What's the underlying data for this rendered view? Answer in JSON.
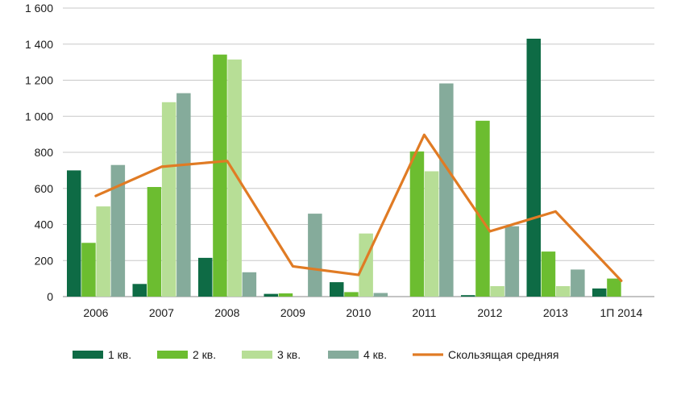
{
  "chart_data": {
    "type": "bar",
    "categories": [
      "2006",
      "2007",
      "2008",
      "2009",
      "2010",
      "2011",
      "2012",
      "2013",
      "1П 2014"
    ],
    "series": [
      {
        "name": "1 кв.",
        "color": "#0e6b45",
        "values": [
          700,
          70,
          215,
          15,
          80,
          0,
          8,
          1430,
          45
        ]
      },
      {
        "name": "2 кв.",
        "color": "#6cbd30",
        "values": [
          298,
          608,
          1342,
          18,
          25,
          805,
          975,
          250,
          100
        ]
      },
      {
        "name": "3 кв.",
        "color": "#b7de96",
        "values": [
          500,
          1078,
          1315,
          0,
          350,
          695,
          58,
          58,
          0
        ]
      },
      {
        "name": "4 кв.",
        "color": "#85ab9b",
        "values": [
          730,
          1128,
          135,
          460,
          20,
          1182,
          390,
          150,
          0
        ]
      }
    ],
    "line": {
      "name": "Скользящая средняя",
      "color": "#e07b24",
      "values": [
        558,
        720,
        752,
        168,
        120,
        897,
        362,
        472,
        88
      ]
    },
    "yticks": [
      {
        "value": 0,
        "label": "0"
      },
      {
        "value": 200,
        "label": "200"
      },
      {
        "value": 400,
        "label": "400"
      },
      {
        "value": 600,
        "label": "600"
      },
      {
        "value": 800,
        "label": "800"
      },
      {
        "value": 1000,
        "label": "1 000"
      },
      {
        "value": 1200,
        "label": "1 200"
      },
      {
        "value": 1400,
        "label": "1 400"
      },
      {
        "value": 1600,
        "label": "1 600"
      }
    ],
    "ylim": [
      0,
      1600
    ],
    "title": "",
    "xlabel": "",
    "ylabel": "",
    "grid": true,
    "legend_position": "bottom"
  }
}
